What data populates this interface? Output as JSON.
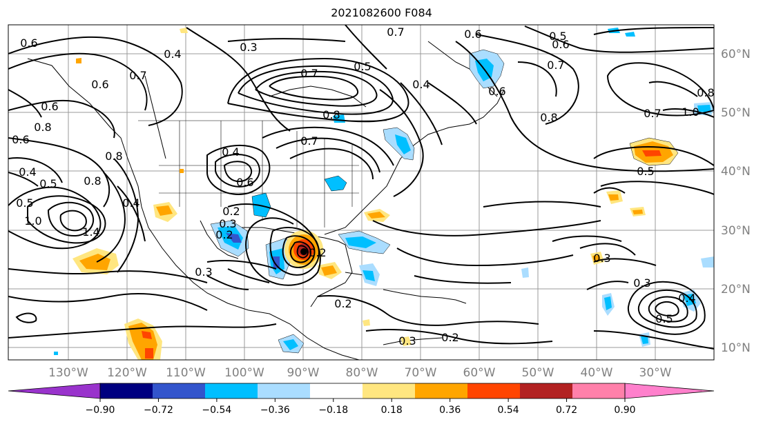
{
  "title": "2021082600 F084",
  "axes": {
    "lat_labels": [
      "60°N",
      "50°N",
      "40°N",
      "30°N",
      "20°N",
      "10°N"
    ],
    "lon_labels": [
      "130°W",
      "120°W",
      "110°W",
      "100°W",
      "90°W",
      "80°W",
      "70°W",
      "60°W",
      "50°W",
      "40°W",
      "30°W"
    ]
  },
  "contour_labels": [
    "0.3",
    "0.7",
    "0.6",
    "0.6",
    "0.5",
    "0.6",
    "0.4",
    "0.7",
    "0.6",
    "0.6",
    "0.7",
    "0.8",
    "0.7",
    "0.4",
    "0.5",
    "0.6",
    "0.8",
    "0.8",
    "0.6",
    "0.4",
    "0.7",
    "0.5",
    "0.8",
    "0.4",
    "0.6",
    "0.7",
    "0.8",
    "1.0",
    "0.5",
    "0.4",
    "0.5",
    "1.0",
    "1.4",
    "0.3",
    "0.3",
    "0.2",
    "0.2",
    "0.2",
    "0.3",
    "0.3",
    "0.5",
    "0.4",
    "0.3",
    "0.2",
    "0.2",
    "0.8"
  ],
  "colorbar": {
    "ticks": [
      "−0.90",
      "−0.72",
      "−0.54",
      "−0.36",
      "−0.18",
      "0.18",
      "0.36",
      "0.54",
      "0.72",
      "0.90"
    ],
    "colors": [
      "#9933cc",
      "#000080",
      "#3355cc",
      "#00bfff",
      "#aaddff",
      "#ffffff",
      "#ffe680",
      "#ffa500",
      "#ff4500",
      "#b22222",
      "#ff80aa",
      "#ff80cc"
    ]
  },
  "shading_colors": {
    "blue_light": "#aaddff",
    "blue": "#00bfff",
    "blue_dark": "#3355cc",
    "purple": "#9933cc",
    "yellow": "#ffe680",
    "orange": "#ffa500",
    "red": "#ff4500",
    "dark_red": "#b22222"
  }
}
